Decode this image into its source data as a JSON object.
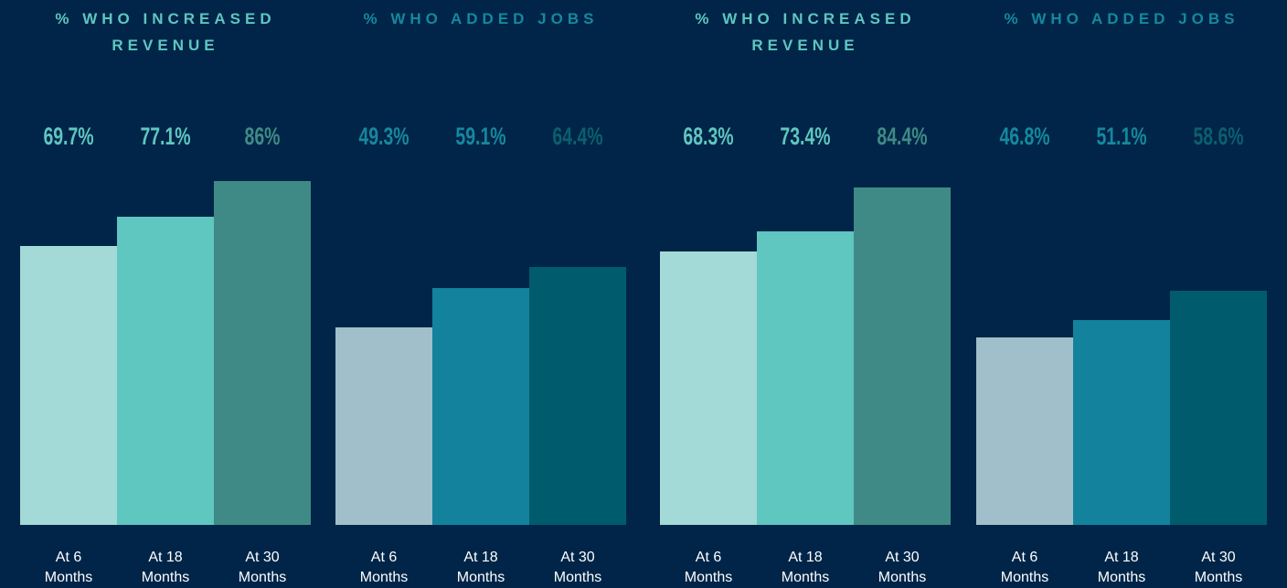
{
  "chart_data": [
    {
      "type": "bar",
      "title": "% WHO INCREASED REVENUE",
      "title_color": "#5fc6c0",
      "categories": [
        "At 6 Months",
        "At 18 Months",
        "At 30 Months"
      ],
      "values": [
        69.7,
        77.1,
        86
      ],
      "value_labels": [
        "69.7%",
        "77.1%",
        "86%"
      ],
      "colors": [
        "#a3d9d6",
        "#5fc6c0",
        "#3f8a86"
      ],
      "label_colors": [
        "#5fc6c0",
        "#5fc6c0",
        "#3f8a86"
      ],
      "ylim": [
        0,
        100
      ]
    },
    {
      "type": "bar",
      "title": "% WHO ADDED JOBS",
      "title_color": "#15889e",
      "categories": [
        "At 6 Months",
        "At 18 Months",
        "At 30 Months"
      ],
      "values": [
        49.3,
        59.1,
        64.4
      ],
      "value_labels": [
        "49.3%",
        "59.1%",
        "64.4%"
      ],
      "colors": [
        "#a0bfcb",
        "#13829c",
        "#005c6c"
      ],
      "label_colors": [
        "#15889e",
        "#15889e",
        "#0b5f6e"
      ],
      "ylim": [
        0,
        100
      ]
    },
    {
      "type": "bar",
      "title": "% WHO INCREASED REVENUE",
      "title_color": "#5fc6c0",
      "categories": [
        "At 6 Months",
        "At 18 Months",
        "At 30 Months"
      ],
      "values": [
        68.3,
        73.4,
        84.4
      ],
      "value_labels": [
        "68.3%",
        "73.4%",
        "84.4%"
      ],
      "colors": [
        "#a3d9d6",
        "#5fc6c0",
        "#3f8a86"
      ],
      "label_colors": [
        "#5fc6c0",
        "#5fc6c0",
        "#3f8a86"
      ],
      "ylim": [
        0,
        100
      ]
    },
    {
      "type": "bar",
      "title": "% WHO ADDED JOBS",
      "title_color": "#15889e",
      "categories": [
        "At 6 Months",
        "At 18 Months",
        "At 30 Months"
      ],
      "values": [
        46.8,
        51.1,
        58.6
      ],
      "value_labels": [
        "46.8%",
        "51.1%",
        "58.6%"
      ],
      "colors": [
        "#a0bfcb",
        "#13829c",
        "#005c6c"
      ],
      "label_colors": [
        "#15889e",
        "#15889e",
        "#0b5f6e"
      ],
      "ylim": [
        0,
        100
      ]
    }
  ]
}
